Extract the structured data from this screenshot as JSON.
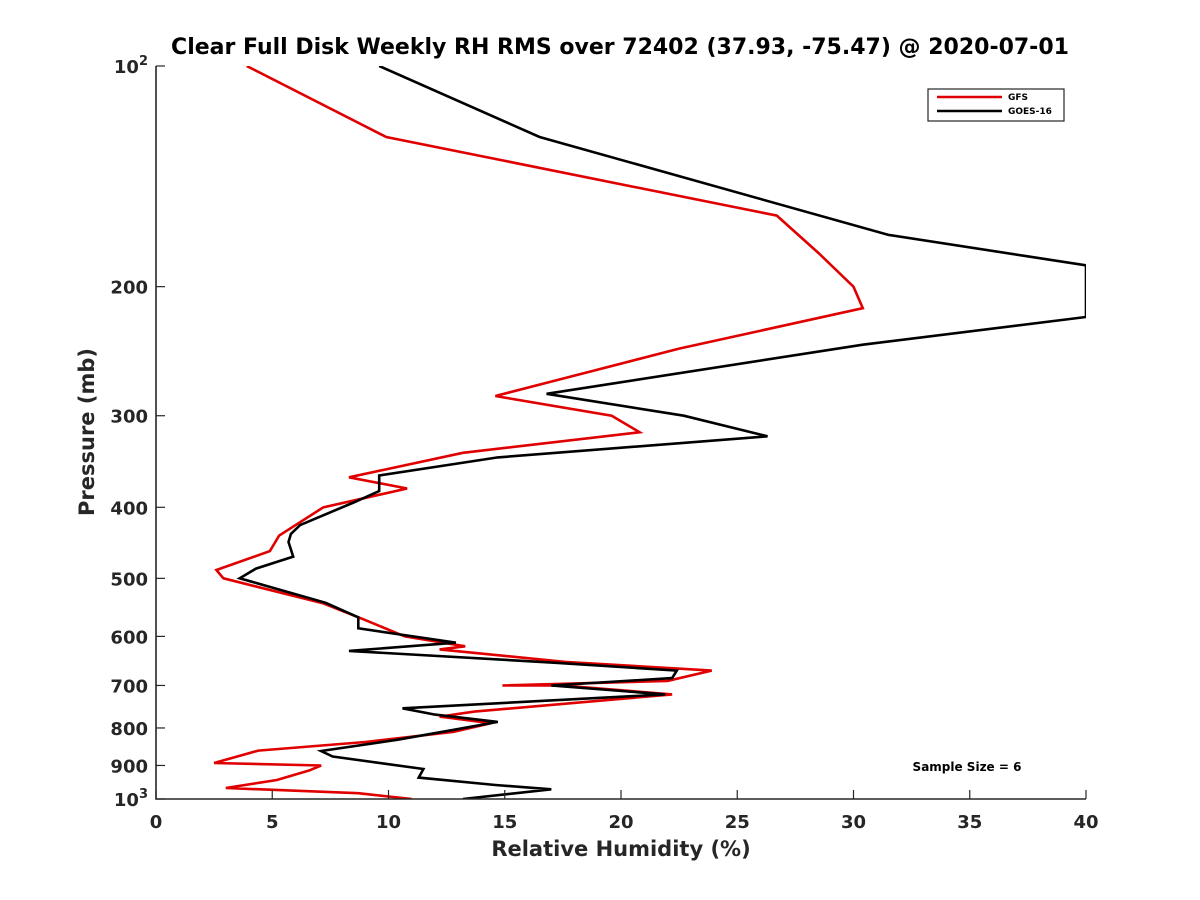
{
  "chart_data": {
    "type": "line",
    "title": "Clear Full Disk Weekly RH RMS over 72402 (37.93, -75.47) @ 2020-07-01",
    "xlabel": "Relative Humidity (%)",
    "ylabel": "Pressure (mb)",
    "xlim": [
      0,
      40
    ],
    "ylim": [
      100,
      1000
    ],
    "yscale": "log",
    "yreversed": true,
    "xticks": [
      0,
      5,
      10,
      15,
      20,
      25,
      30,
      35,
      40
    ],
    "yticks": [
      {
        "value": 100,
        "base": "10",
        "exp": "2"
      },
      {
        "value": 200,
        "label": "200"
      },
      {
        "value": 300,
        "label": "300"
      },
      {
        "value": 400,
        "label": "400"
      },
      {
        "value": 500,
        "label": "500"
      },
      {
        "value": 600,
        "label": "600"
      },
      {
        "value": 700,
        "label": "700"
      },
      {
        "value": 800,
        "label": "800"
      },
      {
        "value": 900,
        "label": "900"
      },
      {
        "value": 1000,
        "base": "10",
        "exp": "3"
      }
    ],
    "legend_position": "top-right",
    "annotation": "Sample Size = 6",
    "series": [
      {
        "name": "GFS",
        "color": "#e00000",
        "points": [
          [
            3.9,
            100
          ],
          [
            9.9,
            125
          ],
          [
            26.7,
            160
          ],
          [
            28.5,
            180
          ],
          [
            30.0,
            200
          ],
          [
            30.4,
            214
          ],
          [
            22.5,
            243
          ],
          [
            18.5,
            262
          ],
          [
            14.6,
            282
          ],
          [
            19.6,
            300
          ],
          [
            20.8,
            316
          ],
          [
            13.2,
            337
          ],
          [
            8.3,
            364
          ],
          [
            10.8,
            377
          ],
          [
            7.2,
            400
          ],
          [
            5.3,
            437
          ],
          [
            4.9,
            459
          ],
          [
            2.6,
            487
          ],
          [
            2.9,
            500
          ],
          [
            7.2,
            541
          ],
          [
            9.0,
            570
          ],
          [
            10.7,
            600
          ],
          [
            13.3,
            619
          ],
          [
            12.2,
            625
          ],
          [
            17.6,
            650
          ],
          [
            23.9,
            668
          ],
          [
            22.0,
            690
          ],
          [
            14.9,
            700
          ],
          [
            17.5,
            700
          ],
          [
            22.2,
            720
          ],
          [
            13.7,
            760
          ],
          [
            12.2,
            772
          ],
          [
            14.4,
            788
          ],
          [
            12.8,
            810
          ],
          [
            9.0,
            836
          ],
          [
            4.4,
            859
          ],
          [
            2.5,
            893
          ],
          [
            7.1,
            900
          ],
          [
            6.6,
            914
          ],
          [
            5.2,
            942
          ],
          [
            3.0,
            966
          ],
          [
            8.7,
            982
          ],
          [
            11.0,
            1000
          ]
        ]
      },
      {
        "name": "GOES-16",
        "color": "#000000",
        "points": [
          [
            9.6,
            100
          ],
          [
            16.5,
            125
          ],
          [
            31.5,
            170
          ],
          [
            40.0,
            187
          ],
          [
            40.0,
            220
          ],
          [
            30.4,
            240
          ],
          [
            16.8,
            280
          ],
          [
            22.7,
            300
          ],
          [
            26.3,
            320
          ],
          [
            14.7,
            342
          ],
          [
            9.6,
            362
          ],
          [
            9.6,
            380
          ],
          [
            8.5,
            394
          ],
          [
            6.2,
            423
          ],
          [
            5.8,
            435
          ],
          [
            5.7,
            446
          ],
          [
            5.9,
            467
          ],
          [
            4.3,
            485
          ],
          [
            3.6,
            500
          ],
          [
            7.3,
            540
          ],
          [
            8.7,
            565
          ],
          [
            8.7,
            585
          ],
          [
            12.9,
            612
          ],
          [
            8.3,
            628
          ],
          [
            17.2,
            652
          ],
          [
            22.4,
            668
          ],
          [
            22.2,
            684
          ],
          [
            17.0,
            700
          ],
          [
            21.9,
            720
          ],
          [
            10.6,
            752
          ],
          [
            12.0,
            767
          ],
          [
            14.7,
            785
          ],
          [
            12.6,
            807
          ],
          [
            10.4,
            830
          ],
          [
            7.1,
            860
          ],
          [
            7.6,
            875
          ],
          [
            11.5,
            910
          ],
          [
            11.3,
            935
          ],
          [
            14.6,
            957
          ],
          [
            17.0,
            970
          ],
          [
            13.2,
            1000
          ]
        ]
      }
    ]
  }
}
